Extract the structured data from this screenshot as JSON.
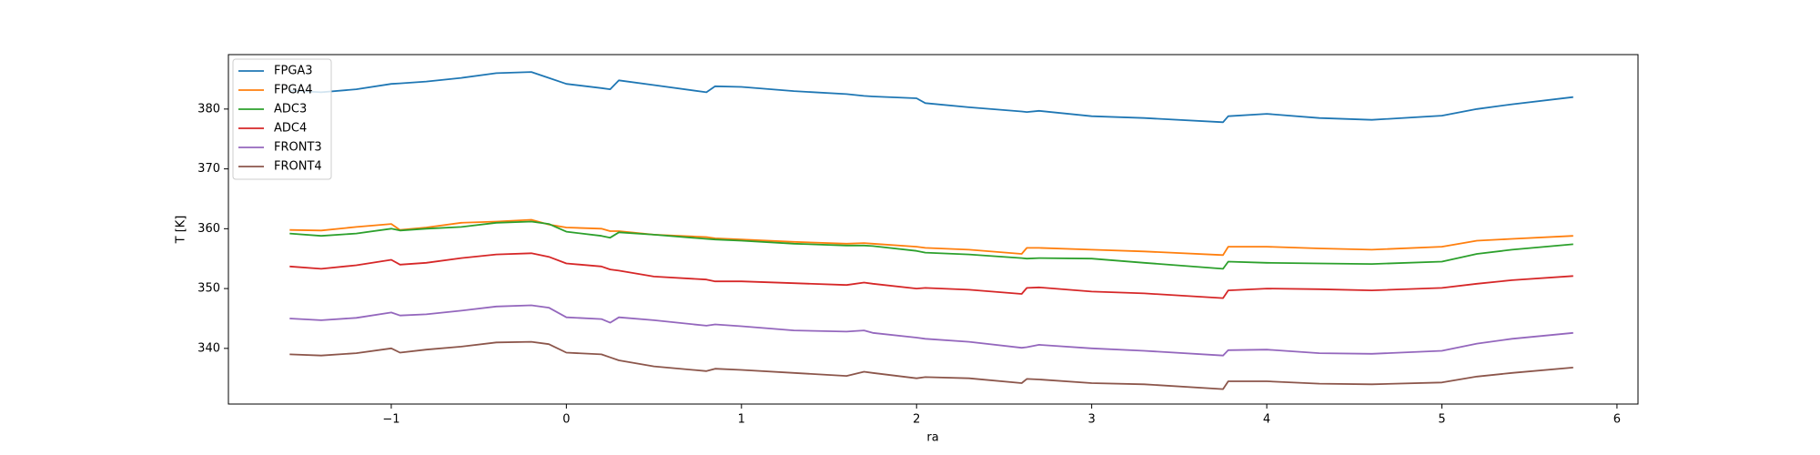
{
  "chart_data": {
    "type": "line",
    "xlabel": "ra",
    "ylabel": "T [K]",
    "x": [
      -1.58,
      -1.4,
      -1.2,
      -1.0,
      -0.95,
      -0.8,
      -0.6,
      -0.4,
      -0.2,
      -0.1,
      0,
      0.2,
      0.25,
      0.3,
      0.5,
      0.8,
      0.85,
      1.0,
      1.3,
      1.6,
      1.7,
      1.75,
      2.0,
      2.05,
      2.3,
      2.6,
      2.63,
      2.7,
      3.0,
      3.3,
      3.75,
      3.78,
      4.0,
      4.3,
      4.6,
      5.0,
      5.2,
      5.4,
      5.75
    ],
    "series": [
      {
        "name": "FPGA3",
        "color": "#1f77b4",
        "values": [
          383.1,
          382.8,
          383.3,
          384.2,
          384.3,
          384.6,
          385.2,
          386,
          386.2,
          385.2,
          384.2,
          383.5,
          383.3,
          384.8,
          384,
          382.8,
          383.8,
          383.7,
          383,
          382.5,
          382.2,
          382.1,
          381.8,
          381,
          380.3,
          379.6,
          379.5,
          379.7,
          378.8,
          378.5,
          377.8,
          378.8,
          379.2,
          378.5,
          378.2,
          378.9,
          380,
          380.8,
          382
        ]
      },
      {
        "name": "FPGA4",
        "color": "#ff7f0e",
        "values": [
          359.8,
          359.7,
          360.3,
          360.8,
          359.8,
          360.2,
          361,
          361.2,
          361.5,
          360.7,
          360.2,
          360,
          359.6,
          359.6,
          359,
          358.6,
          358.4,
          358.2,
          357.8,
          357.5,
          357.6,
          357.5,
          357,
          356.8,
          356.5,
          355.8,
          356.8,
          356.8,
          356.5,
          356.2,
          355.6,
          357,
          357,
          356.7,
          356.5,
          357,
          358,
          358.3,
          358.8
        ]
      },
      {
        "name": "ADC3",
        "color": "#2ca02c",
        "values": [
          359.2,
          358.8,
          359.2,
          360,
          359.7,
          360,
          360.3,
          361,
          361.2,
          360.8,
          359.5,
          358.8,
          358.5,
          359.4,
          359,
          358.3,
          358.2,
          358,
          357.5,
          357.2,
          357.2,
          357.1,
          356.3,
          356,
          355.7,
          355.1,
          355,
          355.1,
          355,
          354.3,
          353.3,
          354.5,
          354.3,
          354.2,
          354.1,
          354.5,
          355.8,
          356.5,
          357.4
        ]
      },
      {
        "name": "ADC4",
        "color": "#d62728",
        "values": [
          353.7,
          353.3,
          353.9,
          354.8,
          354,
          354.3,
          355.1,
          355.7,
          355.9,
          355.3,
          354.2,
          353.7,
          353.2,
          353,
          352,
          351.5,
          351.2,
          351.2,
          350.9,
          350.6,
          351,
          350.8,
          350,
          350.1,
          349.8,
          349.1,
          350.1,
          350.2,
          349.5,
          349.2,
          348.4,
          349.7,
          350,
          349.9,
          349.7,
          350.1,
          350.8,
          351.4,
          352.1
        ]
      },
      {
        "name": "FRONT3",
        "color": "#9467bd",
        "values": [
          345,
          344.7,
          345.1,
          346,
          345.5,
          345.7,
          346.3,
          347,
          347.2,
          346.8,
          345.2,
          344.9,
          344.3,
          345.2,
          344.7,
          343.8,
          344,
          343.7,
          343,
          342.8,
          343,
          342.6,
          341.8,
          341.6,
          341.1,
          340.1,
          340.2,
          340.6,
          340,
          339.6,
          338.8,
          339.7,
          339.8,
          339.2,
          339.1,
          339.6,
          340.8,
          341.6,
          342.6
        ]
      },
      {
        "name": "FRONT4",
        "color": "#8c564b",
        "values": [
          339,
          338.8,
          339.2,
          340,
          339.3,
          339.8,
          340.3,
          341,
          341.1,
          340.7,
          339.3,
          339,
          338.5,
          338,
          337,
          336.2,
          336.6,
          336.4,
          335.9,
          335.4,
          336.1,
          335.9,
          335,
          335.2,
          335,
          334.2,
          334.9,
          334.8,
          334.2,
          334,
          333.2,
          334.5,
          334.5,
          334.1,
          334,
          334.3,
          335.3,
          335.9,
          336.8
        ]
      }
    ],
    "xlim": [
      -1.93,
      6.12
    ],
    "ylim": [
      330.7,
      389.1
    ],
    "xticks": [
      {
        "value": -1,
        "label": "−1"
      },
      0,
      1,
      2,
      3,
      4,
      5,
      6
    ],
    "yticks": [
      340,
      350,
      360,
      370,
      380
    ],
    "legend": "upper left"
  }
}
